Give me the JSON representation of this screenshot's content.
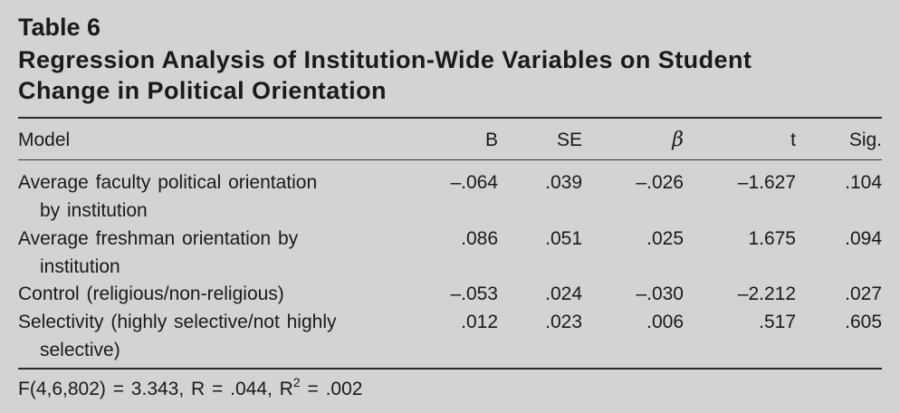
{
  "table": {
    "label": "Table 6",
    "title_line1": "Regression Analysis of Institution-Wide Variables on Student",
    "title_line2": "Change in Political Orientation",
    "headers": {
      "model": "Model",
      "b": "B",
      "se": "SE",
      "beta": "β",
      "t": "t",
      "sig": "Sig."
    },
    "rows": [
      {
        "label_line1": "Average faculty political orientation",
        "label_line2": "by institution",
        "b": "–.064",
        "se": ".039",
        "beta": "–.026",
        "t": "–1.627",
        "sig": ".104"
      },
      {
        "label_line1": "Average freshman orientation by",
        "label_line2": "institution",
        "b": ".086",
        "se": ".051",
        "beta": ".025",
        "t": "1.675",
        "sig": ".094"
      },
      {
        "label_line1": "Control (religious/non-religious)",
        "label_line2": "",
        "b": "–.053",
        "se": ".024",
        "beta": "–.030",
        "t": "–2.212",
        "sig": ".027"
      },
      {
        "label_line1": "Selectivity (highly selective/not highly",
        "label_line2": "selective)",
        "b": ".012",
        "se": ".023",
        "beta": ".006",
        "t": ".517",
        "sig": ".605"
      }
    ],
    "footnote": {
      "prefix": "F(4,6,802) = 3.343, R = .044, R",
      "sup": "2",
      "suffix": " = .002"
    }
  }
}
